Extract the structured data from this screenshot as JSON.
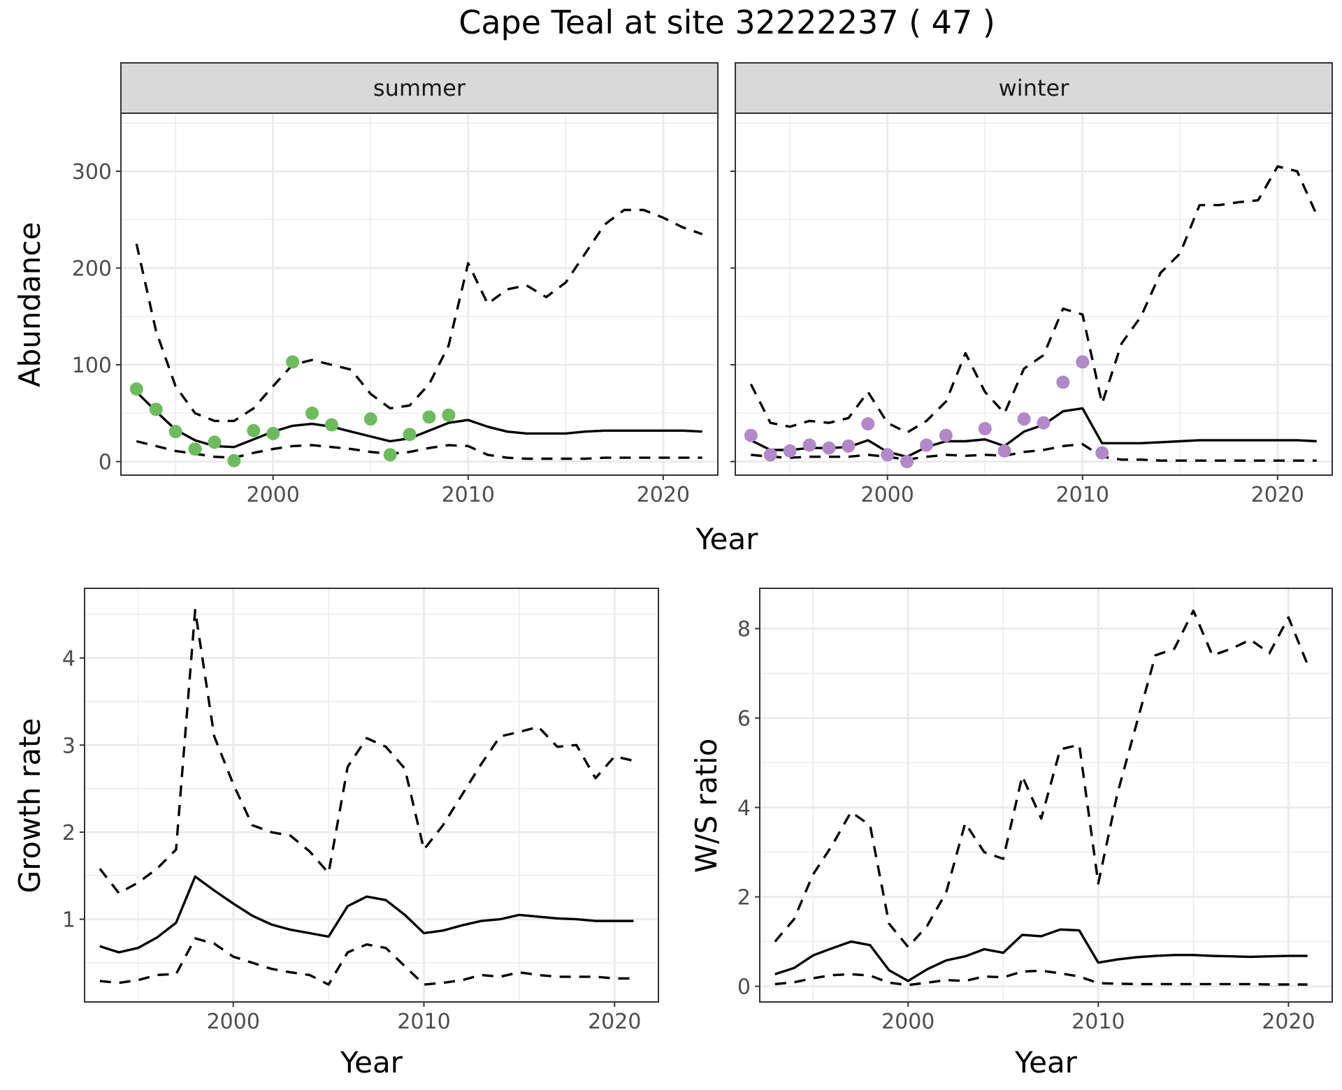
{
  "title": "Cape Teal at site 32222237 ( 47 )",
  "colors": {
    "summer_points": "#6dbb5c",
    "winter_points": "#b188c8",
    "lines": "#000000"
  },
  "chart_data": [
    {
      "id": "abundance-summer",
      "type": "line",
      "strip": "summer",
      "xlabel": "Year",
      "ylabel": "Abundance",
      "xlim": [
        1992.2,
        2022.8
      ],
      "ylim": [
        -14,
        360
      ],
      "xticks": [
        2000,
        2010,
        2020
      ],
      "yticks": [
        0,
        100,
        200,
        300
      ],
      "x": [
        1993,
        1994,
        1995,
        1996,
        1997,
        1998,
        1999,
        2000,
        2001,
        2002,
        2003,
        2004,
        2005,
        2006,
        2007,
        2008,
        2009,
        2010,
        2011,
        2012,
        2013,
        2014,
        2015,
        2016,
        2017,
        2018,
        2019,
        2020,
        2021,
        2022
      ],
      "series": [
        {
          "role": "mean",
          "values": [
            72,
            52,
            33,
            22,
            16,
            15,
            23,
            31,
            37,
            39,
            36,
            31,
            26,
            21,
            24,
            32,
            40,
            43,
            36,
            31,
            29,
            29,
            29,
            31,
            32,
            32,
            32,
            32,
            32,
            31
          ]
        },
        {
          "role": "upper",
          "values": [
            225,
            135,
            78,
            50,
            42,
            42,
            55,
            78,
            100,
            105,
            100,
            95,
            70,
            55,
            58,
            80,
            120,
            205,
            163,
            178,
            182,
            170,
            185,
            215,
            245,
            260,
            260,
            252,
            242,
            235
          ]
        },
        {
          "role": "lower",
          "values": [
            21,
            16,
            11,
            8,
            5,
            4,
            9,
            13,
            16,
            17,
            15,
            13,
            10,
            8,
            10,
            14,
            17,
            16,
            7,
            4,
            3,
            3,
            3,
            3,
            4,
            4,
            4,
            4,
            4,
            4
          ]
        }
      ],
      "points": {
        "color": "#6dbb5c",
        "x": [
          1993,
          1994,
          1995,
          1996,
          1997,
          1998,
          1999,
          2000,
          2001,
          2002,
          2003,
          2005,
          2006,
          2007,
          2008,
          2009
        ],
        "y": [
          75,
          54,
          31,
          13,
          20,
          1,
          32,
          29,
          103,
          50,
          38,
          44,
          7,
          28,
          46,
          48
        ]
      }
    },
    {
      "id": "abundance-winter",
      "type": "line",
      "strip": "winter",
      "xlabel": "Year",
      "ylabel": "",
      "xlim": [
        1992.2,
        2022.8
      ],
      "ylim": [
        -14,
        360
      ],
      "xticks": [
        2000,
        2010,
        2020
      ],
      "yticks": [
        0,
        100,
        200,
        300
      ],
      "x": [
        1993,
        1994,
        1995,
        1996,
        1997,
        1998,
        1999,
        2000,
        2001,
        2002,
        2003,
        2004,
        2005,
        2006,
        2007,
        2008,
        2009,
        2010,
        2011,
        2012,
        2013,
        2014,
        2015,
        2016,
        2017,
        2018,
        2019,
        2020,
        2021,
        2022
      ],
      "series": [
        {
          "role": "mean",
          "values": [
            22,
            12,
            12,
            14,
            14,
            15,
            22,
            10,
            5,
            15,
            21,
            21,
            23,
            16,
            31,
            38,
            52,
            55,
            19,
            19,
            19,
            20,
            21,
            22,
            22,
            22,
            22,
            22,
            22,
            21
          ]
        },
        {
          "role": "upper",
          "values": [
            80,
            40,
            36,
            42,
            40,
            45,
            72,
            40,
            30,
            42,
            62,
            112,
            72,
            50,
            96,
            110,
            158,
            152,
            60,
            122,
            150,
            195,
            215,
            265,
            265,
            268,
            270,
            305,
            300,
            255
          ]
        },
        {
          "role": "lower",
          "values": [
            7,
            5,
            4,
            5,
            5,
            5,
            7,
            5,
            2,
            5,
            7,
            6,
            7,
            6,
            10,
            12,
            16,
            18,
            5,
            2,
            2,
            1,
            1,
            1,
            1,
            1,
            1,
            1,
            1,
            1
          ]
        }
      ],
      "points": {
        "color": "#b188c8",
        "x": [
          1993,
          1994,
          1995,
          1996,
          1997,
          1998,
          1999,
          2000,
          2001,
          2002,
          2003,
          2005,
          2006,
          2007,
          2008,
          2009,
          2010,
          2011
        ],
        "y": [
          27,
          7,
          11,
          17,
          14,
          16,
          39,
          7,
          0,
          17,
          27,
          34,
          11,
          44,
          40,
          82,
          103,
          9
        ]
      }
    },
    {
      "id": "growth-rate",
      "type": "line",
      "xlabel": "Year",
      "ylabel": "Growth rate",
      "xlim": [
        1992.2,
        2022.3
      ],
      "ylim": [
        0.05,
        4.8
      ],
      "xticks": [
        2000,
        2010,
        2020
      ],
      "yticks": [
        1,
        2,
        3,
        4
      ],
      "x": [
        1993,
        1994,
        1995,
        1996,
        1997,
        1998,
        1999,
        2000,
        2001,
        2002,
        2003,
        2004,
        2005,
        2006,
        2007,
        2008,
        2009,
        2010,
        2011,
        2012,
        2013,
        2014,
        2015,
        2016,
        2017,
        2018,
        2019,
        2020,
        2021
      ],
      "series": [
        {
          "role": "mean",
          "values": [
            0.69,
            0.62,
            0.67,
            0.79,
            0.96,
            1.49,
            1.33,
            1.18,
            1.04,
            0.94,
            0.88,
            0.84,
            0.8,
            1.15,
            1.26,
            1.22,
            1.05,
            0.84,
            0.87,
            0.93,
            0.98,
            1.0,
            1.05,
            1.03,
            1.01,
            1.0,
            0.98,
            0.98,
            0.98
          ]
        },
        {
          "role": "upper",
          "values": [
            1.58,
            1.3,
            1.42,
            1.58,
            1.8,
            4.55,
            3.1,
            2.55,
            2.08,
            2.0,
            1.96,
            1.78,
            1.53,
            2.75,
            3.08,
            2.98,
            2.73,
            1.8,
            2.08,
            2.43,
            2.78,
            3.1,
            3.15,
            3.21,
            2.98,
            3.0,
            2.62,
            2.87,
            2.82
          ]
        },
        {
          "role": "lower",
          "values": [
            0.29,
            0.27,
            0.3,
            0.36,
            0.37,
            0.78,
            0.72,
            0.57,
            0.5,
            0.43,
            0.39,
            0.36,
            0.25,
            0.62,
            0.71,
            0.67,
            0.46,
            0.25,
            0.27,
            0.3,
            0.36,
            0.34,
            0.39,
            0.36,
            0.34,
            0.34,
            0.34,
            0.32,
            0.32
          ]
        }
      ]
    },
    {
      "id": "ws-ratio",
      "type": "line",
      "xlabel": "Year",
      "ylabel": "W/S ratio",
      "xlim": [
        1992.2,
        2022.3
      ],
      "ylim": [
        -0.35,
        8.9
      ],
      "xticks": [
        2000,
        2010,
        2020
      ],
      "yticks": [
        0,
        2,
        4,
        6,
        8
      ],
      "x": [
        1993,
        1994,
        1995,
        1996,
        1997,
        1998,
        1999,
        2000,
        2001,
        2002,
        2003,
        2004,
        2005,
        2006,
        2007,
        2008,
        2009,
        2010,
        2011,
        2012,
        2013,
        2014,
        2015,
        2016,
        2017,
        2018,
        2019,
        2020,
        2021
      ],
      "series": [
        {
          "role": "mean",
          "values": [
            0.27,
            0.41,
            0.69,
            0.85,
            1.0,
            0.92,
            0.36,
            0.12,
            0.38,
            0.58,
            0.67,
            0.83,
            0.75,
            1.15,
            1.12,
            1.27,
            1.25,
            0.53,
            0.6,
            0.65,
            0.68,
            0.7,
            0.7,
            0.68,
            0.67,
            0.66,
            0.67,
            0.68,
            0.68
          ]
        },
        {
          "role": "upper",
          "values": [
            1.0,
            1.5,
            2.5,
            3.15,
            3.9,
            3.6,
            1.4,
            0.88,
            1.35,
            2.1,
            3.65,
            3.0,
            2.85,
            4.7,
            3.75,
            5.3,
            5.4,
            2.3,
            4.3,
            5.85,
            7.4,
            7.55,
            8.4,
            7.4,
            7.55,
            7.75,
            7.45,
            8.25,
            7.2
          ]
        },
        {
          "role": "lower",
          "values": [
            0.05,
            0.09,
            0.18,
            0.25,
            0.27,
            0.24,
            0.08,
            0.03,
            0.08,
            0.14,
            0.12,
            0.22,
            0.2,
            0.33,
            0.35,
            0.29,
            0.22,
            0.07,
            0.06,
            0.05,
            0.05,
            0.05,
            0.05,
            0.05,
            0.05,
            0.05,
            0.04,
            0.04,
            0.04
          ]
        }
      ]
    }
  ]
}
